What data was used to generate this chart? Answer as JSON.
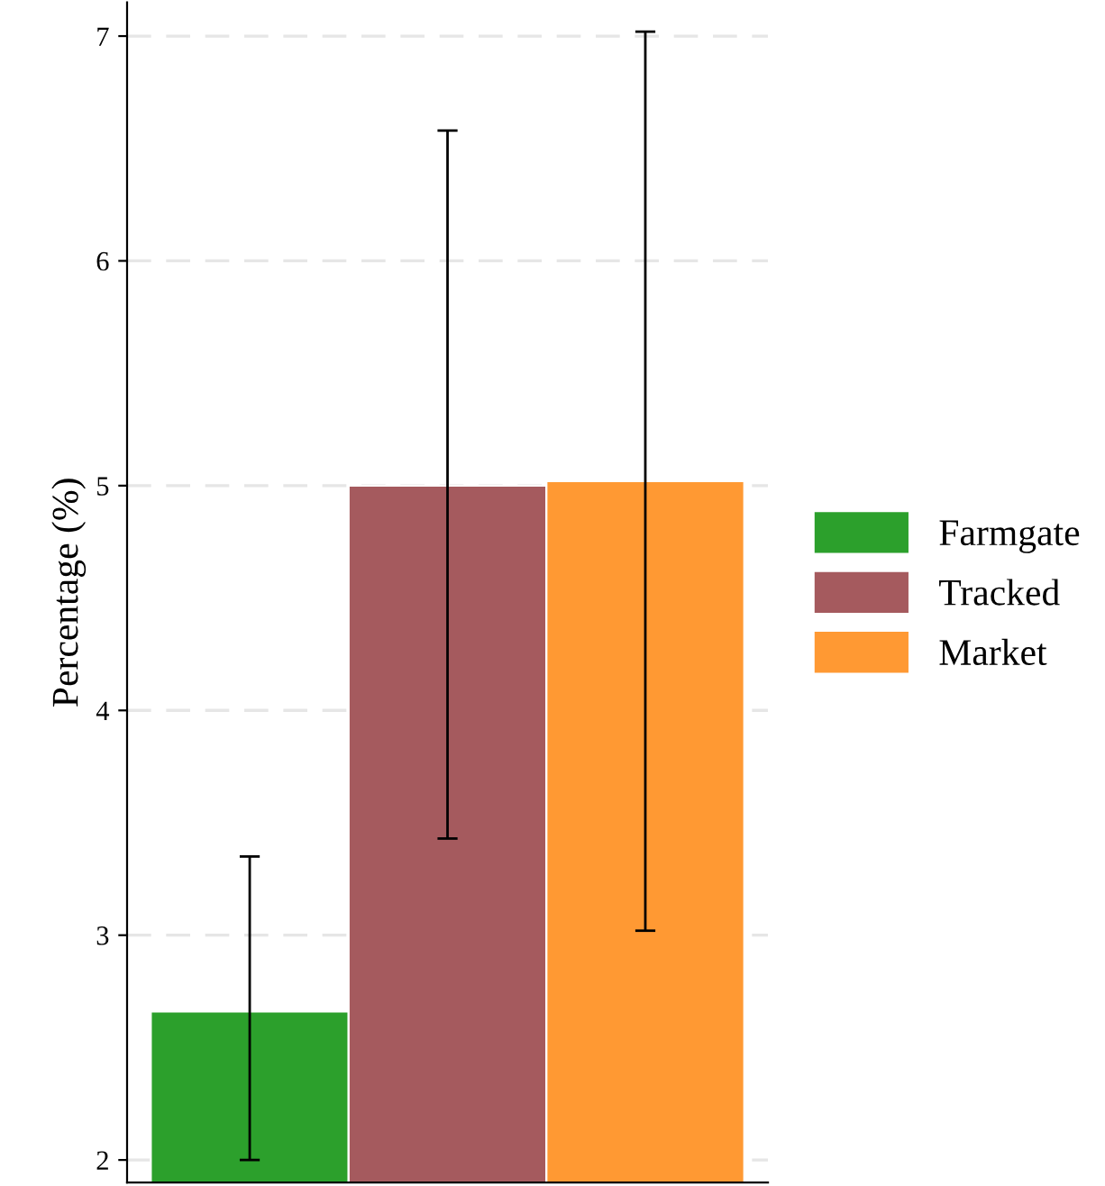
{
  "chart_data": {
    "type": "bar",
    "ylabel": "Percentage (%)",
    "categories": [
      null,
      null,
      null
    ],
    "series": [
      {
        "name": "Farmgate",
        "color": "#2ca02c",
        "values": [
          2.66,
          null,
          null
        ],
        "errors": [
          [
            2.0,
            3.35
          ],
          null,
          null
        ]
      },
      {
        "name": "Tracked",
        "color": "#a55a5e",
        "values": [
          null,
          5.0,
          null
        ],
        "errors": [
          null,
          [
            3.43,
            6.58
          ],
          null
        ]
      },
      {
        "name": "Market",
        "color": "#ff9933",
        "values": [
          null,
          null,
          5.02
        ],
        "errors": [
          null,
          null,
          [
            3.02,
            7.02
          ]
        ]
      }
    ],
    "ylim": [
      1.9,
      7.15
    ],
    "yticks": [
      2,
      3,
      4,
      5,
      6,
      7
    ],
    "grid": "y",
    "legend": "right"
  }
}
